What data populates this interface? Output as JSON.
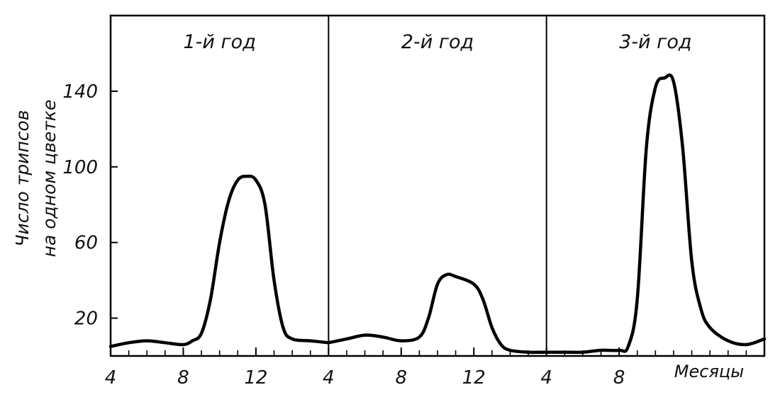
{
  "chart_data": {
    "type": "line",
    "title": "",
    "xlabel": "Месяцы",
    "ylabel": [
      "Число трипсов",
      "на одном цветке"
    ],
    "ylim": [
      0,
      180
    ],
    "yticks": [
      20,
      60,
      100,
      140
    ],
    "grid": false,
    "legend": "none",
    "line_color": "#000000",
    "panels": [
      {
        "label": "1-й год",
        "xticks": [
          "4",
          "8",
          "12"
        ],
        "xlim": [
          4,
          16
        ],
        "points": [
          [
            4,
            5
          ],
          [
            5,
            7
          ],
          [
            6,
            8
          ],
          [
            7,
            7
          ],
          [
            8,
            6
          ],
          [
            8.5,
            8
          ],
          [
            9,
            12
          ],
          [
            9.5,
            30
          ],
          [
            10,
            60
          ],
          [
            10.5,
            82
          ],
          [
            11,
            93
          ],
          [
            11.5,
            95
          ],
          [
            12,
            93
          ],
          [
            12.5,
            80
          ],
          [
            13,
            40
          ],
          [
            13.5,
            15
          ],
          [
            14,
            9
          ],
          [
            15,
            8
          ],
          [
            16,
            7
          ]
        ]
      },
      {
        "label": "2-й год",
        "xticks": [
          "4",
          "8",
          "12"
        ],
        "xlim": [
          4,
          16
        ],
        "points": [
          [
            4,
            7
          ],
          [
            5,
            9
          ],
          [
            6,
            11
          ],
          [
            7,
            10
          ],
          [
            8,
            8
          ],
          [
            9,
            10
          ],
          [
            9.5,
            20
          ],
          [
            10,
            38
          ],
          [
            10.5,
            43
          ],
          [
            11,
            42
          ],
          [
            12,
            38
          ],
          [
            12.5,
            30
          ],
          [
            13,
            15
          ],
          [
            13.5,
            6
          ],
          [
            14,
            3
          ],
          [
            15,
            2
          ],
          [
            16,
            2
          ]
        ]
      },
      {
        "label": "3-й год",
        "xticks": [
          "4",
          "8"
        ],
        "xlim": [
          4,
          16
        ],
        "points": [
          [
            4,
            2
          ],
          [
            5,
            2
          ],
          [
            6,
            2
          ],
          [
            7,
            3
          ],
          [
            8,
            3
          ],
          [
            8.5,
            5
          ],
          [
            9,
            30
          ],
          [
            9.5,
            110
          ],
          [
            10,
            142
          ],
          [
            10.5,
            147
          ],
          [
            11,
            145
          ],
          [
            11.5,
            110
          ],
          [
            12,
            50
          ],
          [
            12.5,
            25
          ],
          [
            13,
            15
          ],
          [
            14,
            8
          ],
          [
            15,
            6
          ],
          [
            16,
            9
          ]
        ]
      }
    ]
  }
}
